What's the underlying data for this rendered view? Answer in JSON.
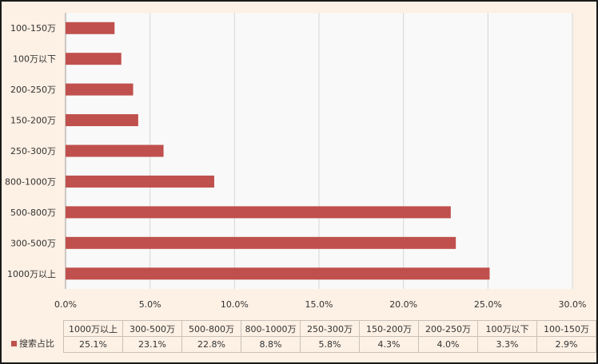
{
  "chart_data": {
    "type": "bar",
    "orientation": "horizontal",
    "categories": [
      "100-150万",
      "100万以下",
      "200-250万",
      "150-200万",
      "250-300万",
      "800-1000万",
      "500-800万",
      "300-500万",
      "1000万以上"
    ],
    "series": [
      {
        "name": "搜索占比",
        "color": "#c0504d",
        "values": [
          2.9,
          3.3,
          4.0,
          4.3,
          5.8,
          8.8,
          22.8,
          23.1,
          25.1
        ]
      }
    ],
    "xlim": [
      0,
      30
    ],
    "xticks": [
      "0.0%",
      "5.0%",
      "10.0%",
      "15.0%",
      "20.0%",
      "25.0%",
      "30.0%"
    ],
    "xtick_values": [
      0,
      5,
      10,
      15,
      20,
      25,
      30
    ],
    "grid": true,
    "table": {
      "headers": [
        "1000万以上",
        "300-500万",
        "500-800万",
        "800-1000万",
        "250-300万",
        "150-200万",
        "200-250万",
        "100万以下",
        "100-150万"
      ],
      "row_label": "搜索占比",
      "values": [
        "25.1%",
        "23.1%",
        "22.8%",
        "8.8%",
        "5.8%",
        "4.3%",
        "4.0%",
        "3.3%",
        "2.9%"
      ]
    }
  }
}
